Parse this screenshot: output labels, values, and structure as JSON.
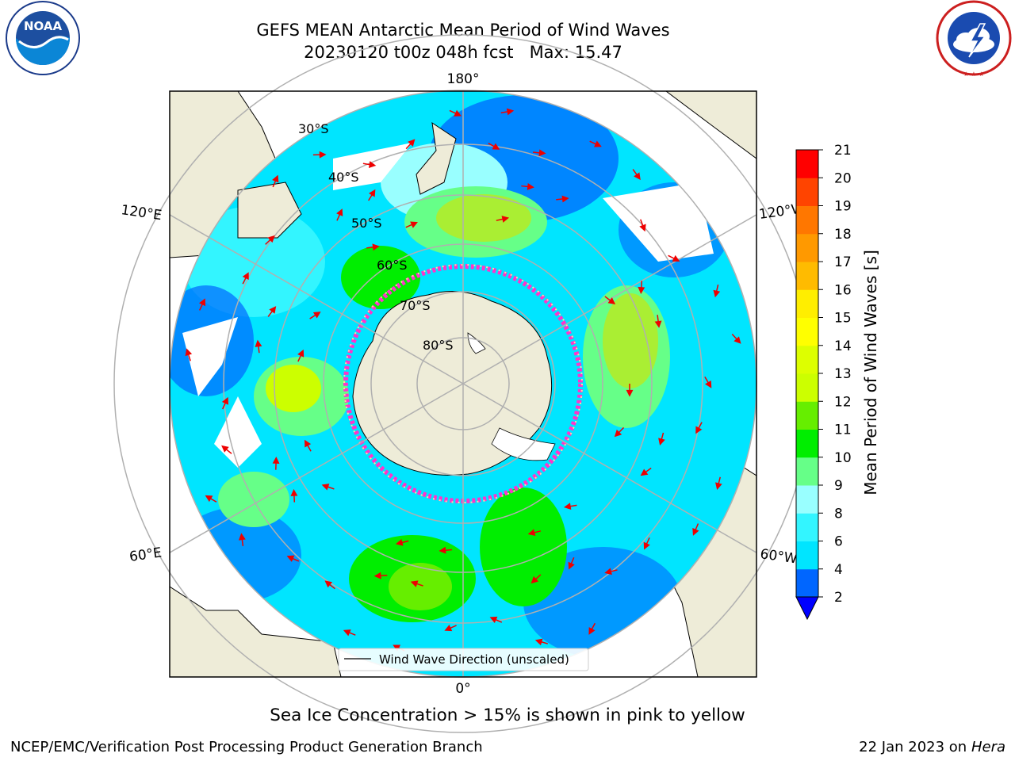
{
  "header": {
    "title": "GEFS MEAN Antarctic Mean Period of Wind Waves",
    "subtitle": "20230120 t00z 048h fcst   Max: 15.47"
  },
  "logos": {
    "left": {
      "name": "noaa-logo",
      "text": "NOAA",
      "ring_text": "NATIONAL OCEANIC AND ATMOSPHERIC ADMINISTRATION · U.S. DEPARTMENT OF COMMERCE"
    },
    "right": {
      "name": "nws-logo",
      "ring_text": "NATIONAL WEATHER SERVICE"
    }
  },
  "map": {
    "projection": "south-polar-stereographic",
    "longitude_labels": {
      "top": "180°",
      "bottom": "0°",
      "left_upper": "120°E",
      "left_lower": "60°E",
      "right_upper": "120°W",
      "right_lower": "60°W"
    },
    "latitude_labels": [
      "30°S",
      "40°S",
      "50°S",
      "60°S",
      "70°S",
      "80°S"
    ],
    "legend_text": "Wind Wave Direction (unscaled)"
  },
  "colorbar": {
    "label": "Mean Period of Wind Waves [s]",
    "ticks": [
      "2",
      "4",
      "6",
      "8",
      "9",
      "10",
      "11",
      "12",
      "13",
      "14",
      "15",
      "16",
      "17",
      "18",
      "19",
      "20",
      "21"
    ],
    "colors": [
      "#0066ff",
      "#00e5ff",
      "#33f5ff",
      "#99ffff",
      "#66ff88",
      "#00ee00",
      "#66ee00",
      "#ccff00",
      "#ddff00",
      "#ffff00",
      "#ffee00",
      "#ffbb00",
      "#ff9900",
      "#ff7700",
      "#ff4400",
      "#ff0000"
    ],
    "under_color": "#0000ff"
  },
  "footer": {
    "note": "Sea Ice Concentration > 15% is shown in pink to yellow",
    "left": "NCEP/EMC/Verification Post Processing Product Generation Branch",
    "right_date": "22 Jan 2023 on ",
    "right_host": "Hera"
  }
}
